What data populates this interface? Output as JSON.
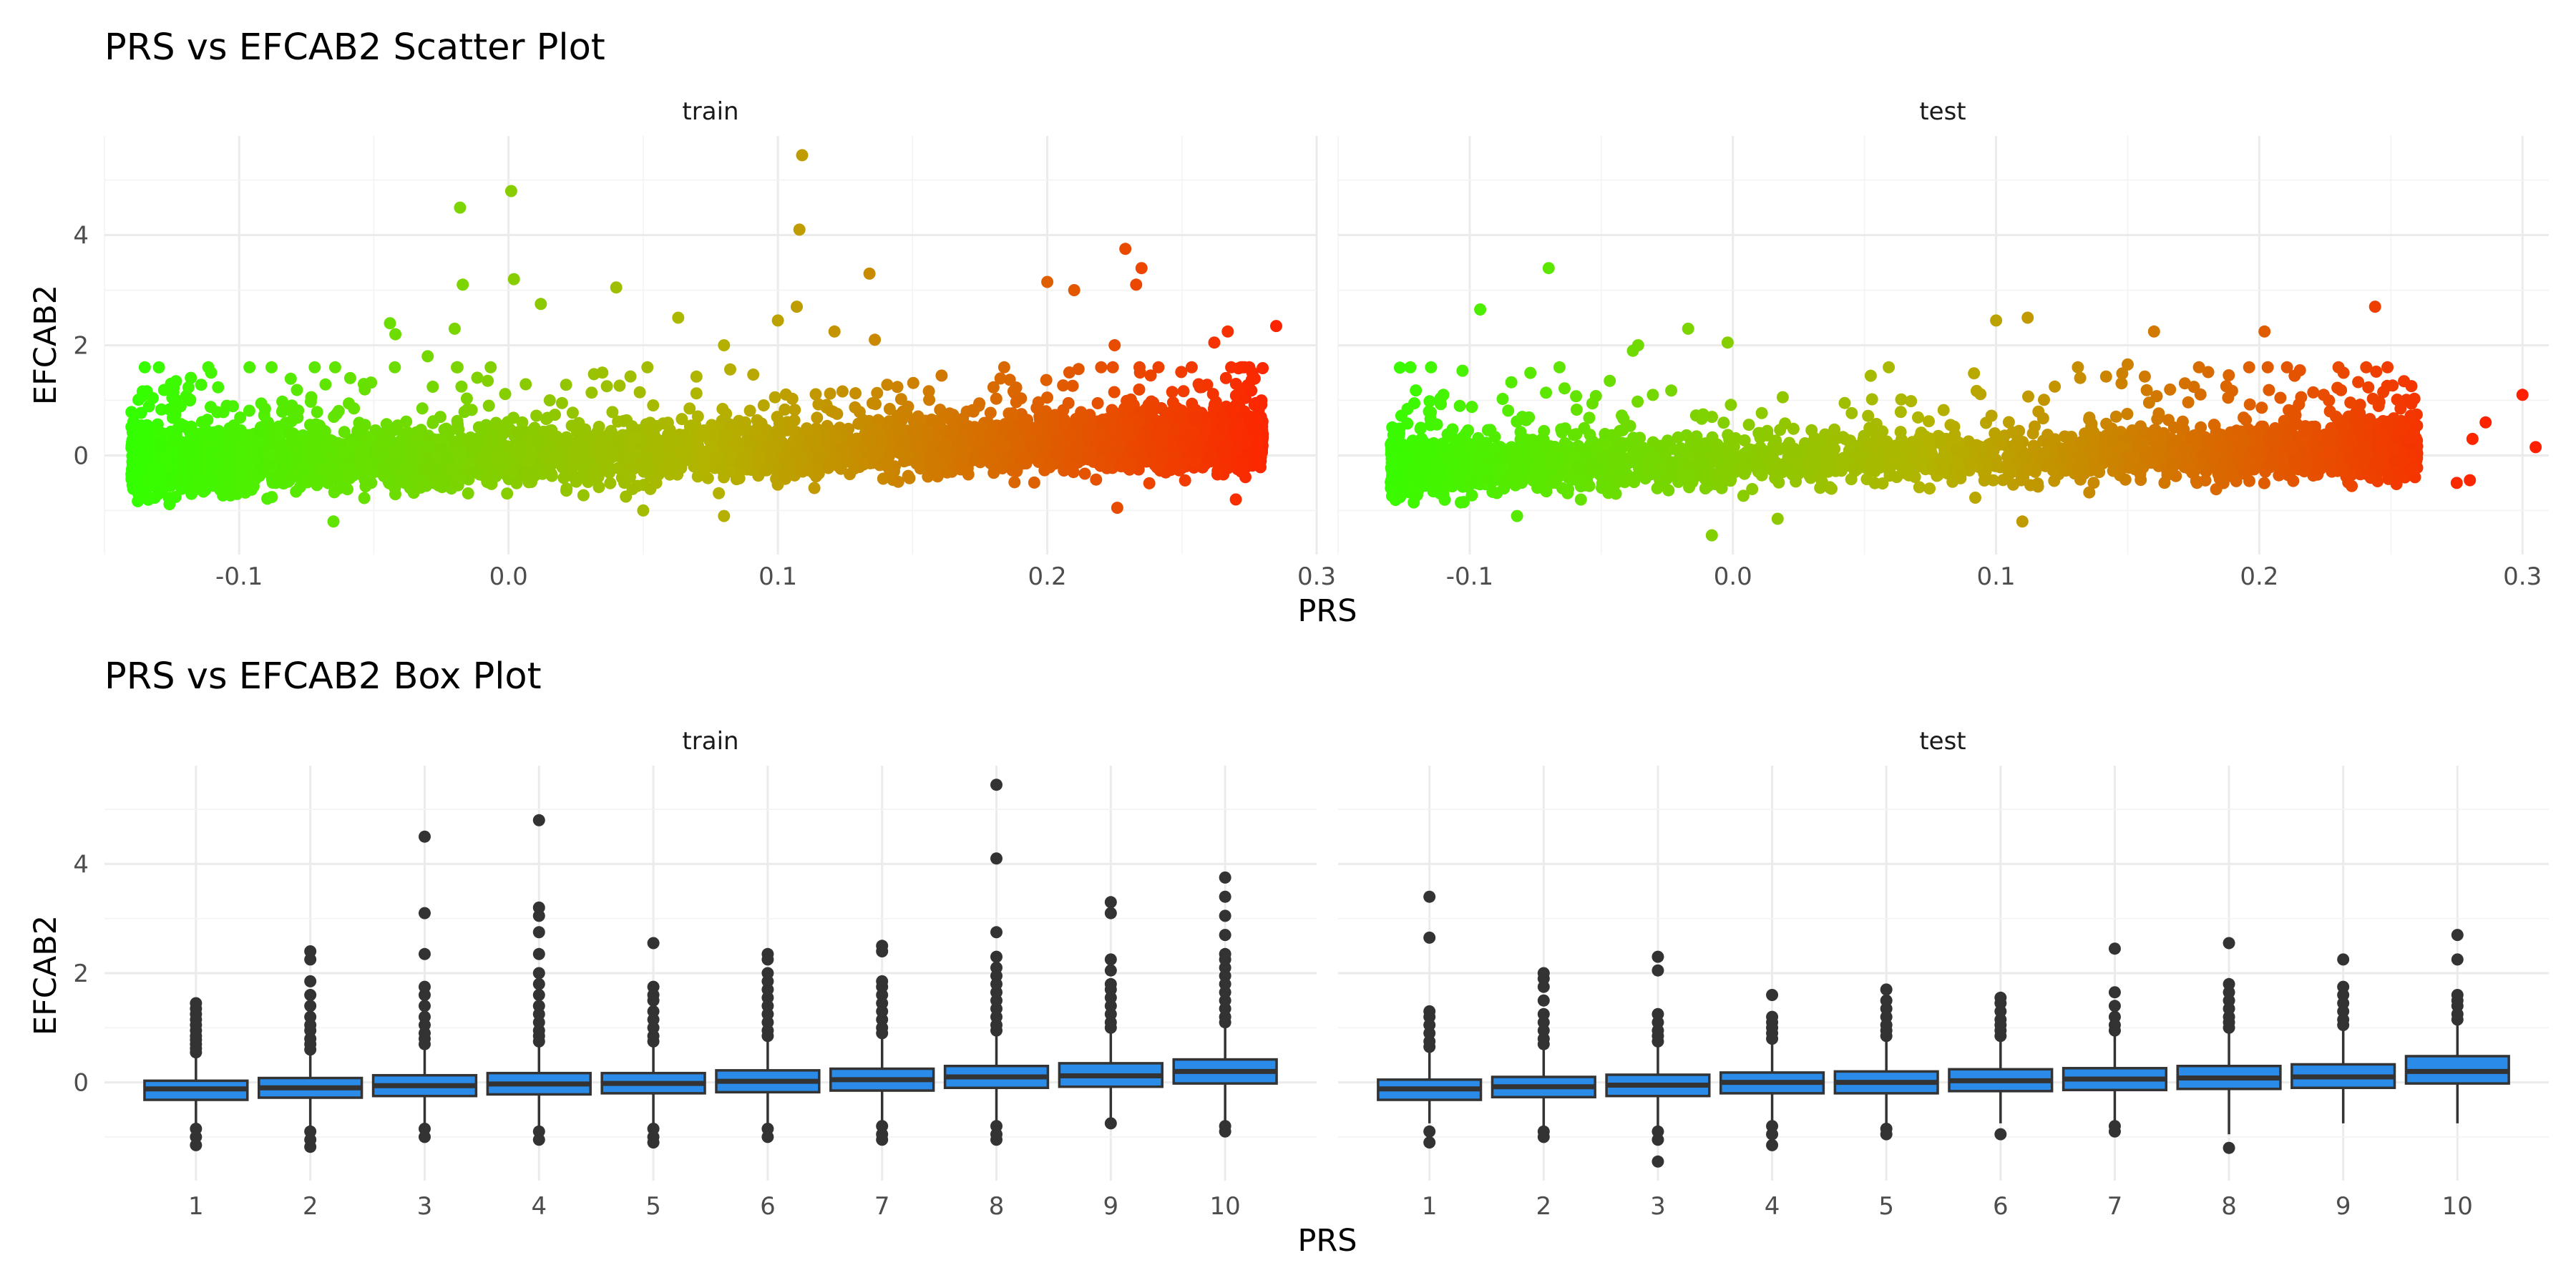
{
  "colors": {
    "low": "#33ff00",
    "mid": "#b3b300",
    "high": "#ff2000",
    "box_fill": "#2a8be8",
    "box_line": "#333333"
  },
  "chart_data": [
    {
      "type": "scatter",
      "title": "PRS vs EFCAB2 Scatter Plot",
      "xlabel": "PRS",
      "ylabel": "EFCAB2",
      "grid": true,
      "color_encoding": "gradient by PRS: green (low) to orange to red (high)",
      "panels": [
        {
          "name": "train",
          "xlim": [
            -0.15,
            0.3
          ],
          "ylim": [
            -1.8,
            5.8
          ],
          "xticks": [
            "-0.1",
            "0.0",
            "0.1",
            "0.2",
            "0.3"
          ],
          "yticks": [
            "0",
            "2",
            "4"
          ],
          "bulk": {
            "x_range": [
              -0.14,
              0.28
            ],
            "y_center_start": -0.15,
            "y_center_end": 0.3,
            "y_spread": 0.45
          },
          "outliers": [
            [
              -0.018,
              4.5
            ],
            [
              0.001,
              4.8
            ],
            [
              0.109,
              5.45
            ],
            [
              0.108,
              4.1
            ],
            [
              0.002,
              3.2
            ],
            [
              -0.017,
              3.1
            ],
            [
              0.04,
              3.05
            ],
            [
              0.134,
              3.3
            ],
            [
              0.229,
              3.75
            ],
            [
              0.235,
              3.4
            ],
            [
              0.2,
              3.15
            ],
            [
              0.21,
              3.0
            ],
            [
              0.233,
              3.1
            ],
            [
              0.285,
              2.35
            ],
            [
              0.012,
              2.75
            ],
            [
              0.107,
              2.7
            ],
            [
              -0.044,
              2.4
            ],
            [
              -0.042,
              2.2
            ],
            [
              -0.02,
              2.3
            ],
            [
              0.063,
              2.5
            ],
            [
              0.1,
              2.45
            ],
            [
              0.121,
              2.25
            ],
            [
              0.267,
              2.25
            ],
            [
              -0.03,
              1.8
            ],
            [
              0.08,
              2.0
            ],
            [
              0.136,
              2.1
            ],
            [
              0.225,
              2.0
            ],
            [
              0.262,
              2.05
            ],
            [
              0.275,
              1.6
            ],
            [
              0.27,
              -0.8
            ],
            [
              -0.13,
              -0.7
            ],
            [
              -0.065,
              -1.2
            ],
            [
              0.05,
              -1.0
            ],
            [
              0.226,
              -0.95
            ],
            [
              0.08,
              -1.1
            ]
          ]
        },
        {
          "name": "test",
          "xlim": [
            -0.15,
            0.31
          ],
          "ylim": [
            -1.8,
            5.8
          ],
          "xticks": [
            "-0.1",
            "0.0",
            "0.1",
            "0.2",
            "0.3"
          ],
          "yticks": [
            "0",
            "2",
            "4"
          ],
          "bulk": {
            "x_range": [
              -0.13,
              0.26
            ],
            "y_center_start": -0.2,
            "y_center_end": 0.15,
            "y_spread": 0.42
          },
          "outliers": [
            [
              -0.07,
              3.4
            ],
            [
              -0.096,
              2.65
            ],
            [
              -0.036,
              2.0
            ],
            [
              -0.038,
              1.9
            ],
            [
              -0.017,
              2.3
            ],
            [
              -0.002,
              2.05
            ],
            [
              0.1,
              2.45
            ],
            [
              0.112,
              2.5
            ],
            [
              0.16,
              2.25
            ],
            [
              0.202,
              2.25
            ],
            [
              0.244,
              2.7
            ],
            [
              0.15,
              1.65
            ],
            [
              0.232,
              1.5
            ],
            [
              0.3,
              1.1
            ],
            [
              0.305,
              0.15
            ],
            [
              0.286,
              0.6
            ],
            [
              0.281,
              0.3
            ],
            [
              0.28,
              -0.45
            ],
            [
              -0.11,
              1.1
            ],
            [
              -0.08,
              0.7
            ],
            [
              -0.008,
              -1.45
            ],
            [
              0.017,
              -1.15
            ],
            [
              0.11,
              -1.2
            ],
            [
              -0.082,
              -1.1
            ],
            [
              -0.13,
              0.2
            ],
            [
              0.275,
              -0.5
            ]
          ]
        }
      ]
    },
    {
      "type": "box",
      "title": "PRS vs EFCAB2 Box Plot",
      "xlabel": "PRS",
      "ylabel": "EFCAB2",
      "grid": true,
      "categories": [
        "1",
        "2",
        "3",
        "4",
        "5",
        "6",
        "7",
        "8",
        "9",
        "10"
      ],
      "yticks": [
        "0",
        "2",
        "4"
      ],
      "ylim": [
        -1.8,
        5.8
      ],
      "panels": [
        {
          "name": "train",
          "boxes": [
            {
              "q1": -0.32,
              "median": -0.12,
              "q3": 0.03,
              "wlo": -0.75,
              "whi": 0.5,
              "outliers": [
                0.55,
                0.62,
                0.7,
                0.78,
                0.85,
                0.95,
                1.05,
                1.15,
                1.25,
                1.35,
                1.45,
                -0.85,
                -1.0,
                -1.15
              ]
            },
            {
              "q1": -0.28,
              "median": -0.1,
              "q3": 0.08,
              "wlo": -0.8,
              "whi": 0.55,
              "outliers": [
                0.6,
                0.7,
                0.8,
                0.95,
                1.05,
                1.2,
                1.4,
                1.6,
                1.85,
                2.25,
                2.4,
                -0.9,
                -1.05,
                -1.18
              ]
            },
            {
              "q1": -0.25,
              "median": -0.06,
              "q3": 0.13,
              "wlo": -0.8,
              "whi": 0.65,
              "outliers": [
                0.7,
                0.8,
                0.9,
                1.05,
                1.2,
                1.4,
                1.6,
                1.75,
                2.35,
                3.1,
                4.5,
                -0.85,
                -1.0
              ]
            },
            {
              "q1": -0.22,
              "median": -0.03,
              "q3": 0.17,
              "wlo": -0.8,
              "whi": 0.7,
              "outliers": [
                0.75,
                0.85,
                0.95,
                1.1,
                1.25,
                1.4,
                1.6,
                1.8,
                2.0,
                2.35,
                2.75,
                3.05,
                3.2,
                4.8,
                -0.9,
                -1.05
              ]
            },
            {
              "q1": -0.2,
              "median": -0.02,
              "q3": 0.17,
              "wlo": -0.75,
              "whi": 0.7,
              "outliers": [
                0.75,
                0.85,
                1.0,
                1.15,
                1.3,
                1.5,
                1.6,
                1.75,
                2.55,
                -0.85,
                -1.0,
                -1.1
              ]
            },
            {
              "q1": -0.18,
              "median": 0.02,
              "q3": 0.22,
              "wlo": -0.75,
              "whi": 0.8,
              "outliers": [
                0.85,
                0.95,
                1.1,
                1.25,
                1.4,
                1.55,
                1.7,
                1.85,
                2.0,
                2.25,
                2.35,
                -0.85,
                -1.0
              ]
            },
            {
              "q1": -0.15,
              "median": 0.05,
              "q3": 0.25,
              "wlo": -0.7,
              "whi": 0.85,
              "outliers": [
                0.9,
                1.0,
                1.15,
                1.3,
                1.45,
                1.6,
                1.75,
                1.85,
                2.4,
                2.5,
                -0.8,
                -0.95,
                -1.05
              ]
            },
            {
              "q1": -0.1,
              "median": 0.1,
              "q3": 0.3,
              "wlo": -0.7,
              "whi": 0.9,
              "outliers": [
                0.95,
                1.05,
                1.2,
                1.35,
                1.5,
                1.65,
                1.8,
                1.95,
                2.1,
                2.3,
                2.75,
                4.1,
                5.45,
                -0.8,
                -0.95,
                -1.05
              ]
            },
            {
              "q1": -0.08,
              "median": 0.12,
              "q3": 0.35,
              "wlo": -0.7,
              "whi": 0.95,
              "outliers": [
                1.0,
                1.1,
                1.25,
                1.4,
                1.55,
                1.7,
                1.8,
                2.05,
                2.25,
                3.1,
                3.3,
                -0.75
              ]
            },
            {
              "q1": -0.02,
              "median": 0.2,
              "q3": 0.42,
              "wlo": -0.7,
              "whi": 1.05,
              "outliers": [
                1.1,
                1.2,
                1.35,
                1.5,
                1.65,
                1.8,
                1.95,
                2.1,
                2.25,
                2.35,
                2.7,
                3.05,
                3.4,
                3.75,
                -0.8,
                -0.9
              ]
            }
          ]
        },
        {
          "name": "test",
          "boxes": [
            {
              "q1": -0.32,
              "median": -0.12,
              "q3": 0.05,
              "wlo": -0.75,
              "whi": 0.55,
              "outliers": [
                0.65,
                0.75,
                0.9,
                1.05,
                1.2,
                1.3,
                2.65,
                3.4,
                -0.9,
                -1.1
              ]
            },
            {
              "q1": -0.27,
              "median": -0.08,
              "q3": 0.1,
              "wlo": -0.8,
              "whi": 0.6,
              "outliers": [
                0.7,
                0.8,
                0.95,
                1.1,
                1.25,
                1.5,
                1.75,
                1.9,
                2.0,
                -0.9,
                -1.0
              ]
            },
            {
              "q1": -0.25,
              "median": -0.05,
              "q3": 0.14,
              "wlo": -0.8,
              "whi": 0.65,
              "outliers": [
                0.75,
                0.85,
                0.95,
                1.1,
                1.25,
                2.05,
                2.3,
                -0.9,
                -1.05,
                -1.45
              ]
            },
            {
              "q1": -0.2,
              "median": 0.0,
              "q3": 0.18,
              "wlo": -0.75,
              "whi": 0.7,
              "outliers": [
                0.8,
                0.9,
                1.0,
                1.1,
                1.2,
                1.6,
                -0.8,
                -0.95,
                -1.15
              ]
            },
            {
              "q1": -0.2,
              "median": 0.0,
              "q3": 0.2,
              "wlo": -0.75,
              "whi": 0.75,
              "outliers": [
                0.85,
                0.95,
                1.05,
                1.2,
                1.35,
                1.5,
                1.7,
                -0.85,
                -0.95
              ]
            },
            {
              "q1": -0.16,
              "median": 0.03,
              "q3": 0.24,
              "wlo": -0.75,
              "whi": 0.8,
              "outliers": [
                0.85,
                0.95,
                1.05,
                1.15,
                1.3,
                1.45,
                1.55,
                -0.95
              ]
            },
            {
              "q1": -0.14,
              "median": 0.06,
              "q3": 0.26,
              "wlo": -0.75,
              "whi": 0.85,
              "outliers": [
                0.95,
                1.05,
                1.2,
                1.4,
                1.65,
                2.45,
                -0.8,
                -0.9
              ]
            },
            {
              "q1": -0.12,
              "median": 0.08,
              "q3": 0.3,
              "wlo": -0.95,
              "whi": 0.9,
              "outliers": [
                1.0,
                1.1,
                1.2,
                1.35,
                1.5,
                1.65,
                1.8,
                2.55,
                -1.2
              ]
            },
            {
              "q1": -0.1,
              "median": 0.1,
              "q3": 0.33,
              "wlo": -0.75,
              "whi": 0.95,
              "outliers": [
                1.05,
                1.15,
                1.3,
                1.45,
                1.6,
                1.75,
                2.25
              ]
            },
            {
              "q1": -0.02,
              "median": 0.2,
              "q3": 0.48,
              "wlo": -0.75,
              "whi": 1.05,
              "outliers": [
                1.15,
                1.25,
                1.4,
                1.5,
                1.6,
                2.25,
                2.7
              ]
            }
          ]
        }
      ]
    }
  ]
}
